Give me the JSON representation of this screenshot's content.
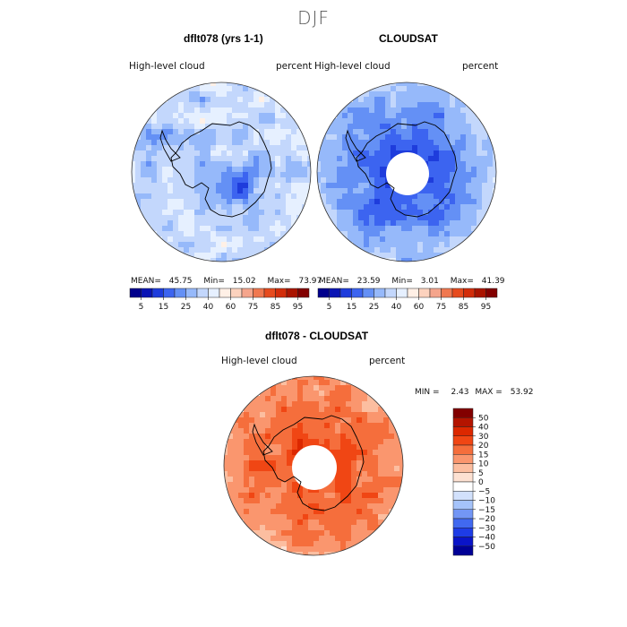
{
  "season": "DJF",
  "left_panel": {
    "title": "dflt078 (yrs 1-1)",
    "variable": "High-level cloud",
    "units": "percent",
    "stats": {
      "mean_label": "MEAN=",
      "mean": "45.75",
      "min_label": "Min=",
      "min": "15.02",
      "max_label": "Max=",
      "max": "73.97"
    }
  },
  "right_panel": {
    "title": "CLOUDSAT",
    "variable": "High-level cloud",
    "units": "percent",
    "stats": {
      "mean_label": "MEAN=",
      "mean": "23.59",
      "min_label": "Min=",
      "min": "3.01",
      "max_label": "Max=",
      "max": "41.39"
    }
  },
  "diff_panel": {
    "title": "dflt078 - CLOUDSAT",
    "variable": "High-level cloud",
    "units": "percent",
    "stats": {
      "min_label": "MIN =",
      "min": "2.43",
      "max_label": "MAX =",
      "max": "53.92"
    }
  },
  "chart_data": [
    {
      "type": "heatmap",
      "title": "dflt078 (yrs 1-1)",
      "projection": "south-polar-stereographic",
      "mean": 45.75,
      "min": 15.02,
      "max": 73.97,
      "colorbar": {
        "orientation": "horizontal",
        "levels": [
          0,
          5,
          10,
          15,
          20,
          25,
          30,
          40,
          50,
          60,
          70,
          75,
          80,
          85,
          90,
          95,
          100
        ],
        "tick_labels": [
          "5",
          "15",
          "25",
          "40",
          "60",
          "75",
          "85",
          "95"
        ],
        "colors": [
          "#00008c",
          "#0a14b4",
          "#1e3cdc",
          "#3c64f0",
          "#6490f5",
          "#96b9fa",
          "#c3d7fc",
          "#e6f0ff",
          "#fff0e6",
          "#fcd2be",
          "#f5a58c",
          "#f07850",
          "#e64b1e",
          "#d22d0a",
          "#aa1400",
          "#820000"
        ]
      }
    },
    {
      "type": "heatmap",
      "title": "CLOUDSAT",
      "projection": "south-polar-stereographic",
      "mean": 23.59,
      "min": 3.01,
      "max": 41.39,
      "missing_region": "polar cap (no data)",
      "colorbar": "shared with dflt078 panel"
    },
    {
      "type": "heatmap",
      "title": "dflt078 - CLOUDSAT",
      "projection": "south-polar-stereographic",
      "min": 2.43,
      "max": 53.92,
      "missing_region": "polar cap (no data)",
      "colorbar": {
        "orientation": "vertical",
        "tick_labels": [
          "50",
          "40",
          "30",
          "20",
          "15",
          "10",
          "5",
          "0",
          "−5",
          "−10",
          "−15",
          "−20",
          "−30",
          "−40",
          "−50"
        ],
        "colors": [
          "#820000",
          "#b41400",
          "#dc2800",
          "#f04614",
          "#f56e3c",
          "#fa966e",
          "#fcbea0",
          "#fde1d2",
          "#ffffff",
          "#d2e1fc",
          "#a5c3fa",
          "#7396f5",
          "#4169f0",
          "#1e3ce6",
          "#0a14c8",
          "#000096"
        ]
      }
    }
  ]
}
